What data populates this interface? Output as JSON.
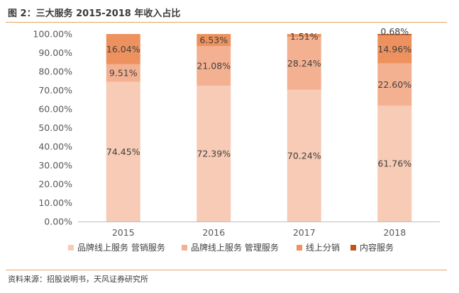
{
  "header": {
    "title": "图 2：三大服务 2015-2018 年收入占比"
  },
  "footer": {
    "source": "资料来源：招股说明书，天风证券研究所"
  },
  "chart_data": {
    "type": "bar",
    "stacked": true,
    "categories": [
      "2015",
      "2016",
      "2017",
      "2018"
    ],
    "series": [
      {
        "name": "品牌线上服务 营销服务",
        "values": [
          74.45,
          72.39,
          70.24,
          61.76
        ],
        "labels": [
          "74.45%",
          "72.39%",
          "70.24%",
          "61.76%"
        ],
        "color": "#f7cbb5"
      },
      {
        "name": "品牌线上服务 管理服务",
        "values": [
          9.51,
          21.08,
          28.24,
          22.6
        ],
        "labels": [
          "9.51%",
          "21.08%",
          "28.24%",
          "22.60%"
        ],
        "color": "#f4b191"
      },
      {
        "name": "线上分销",
        "values": [
          16.04,
          6.53,
          1.51,
          14.96
        ],
        "labels": [
          "16.04%",
          "6.53%",
          "1.51%",
          "14.96%"
        ],
        "color": "#ed925e"
      },
      {
        "name": "内容服务",
        "values": [
          0,
          0,
          0,
          0.68
        ],
        "labels": [
          "",
          "",
          "",
          "0.68%"
        ],
        "color": "#c0541d"
      }
    ],
    "y_ticks": [
      "0.00%",
      "10.00%",
      "20.00%",
      "30.00%",
      "40.00%",
      "50.00%",
      "60.00%",
      "70.00%",
      "80.00%",
      "90.00%",
      "100.00%"
    ],
    "ylim": [
      0,
      100
    ],
    "legend_position": "bottom",
    "grid": false
  }
}
